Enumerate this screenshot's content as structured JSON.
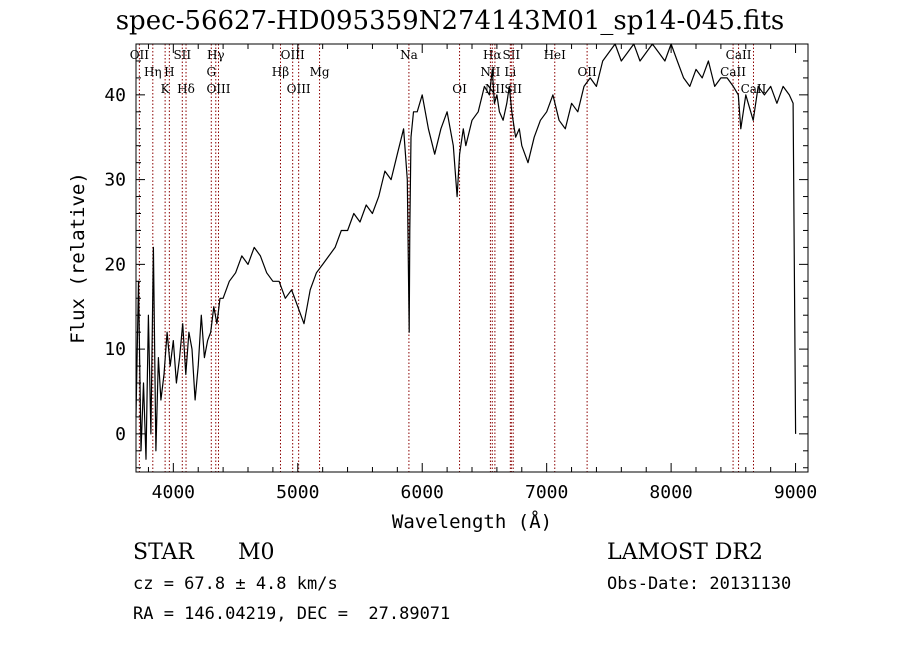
{
  "header": {
    "title": "spec-56627-HD095359N274143M01_sp14-045.fits"
  },
  "footer": {
    "class": "STAR",
    "subclass": "M0",
    "survey": "LAMOST DR2",
    "cz": "cz = 67.8 ± 4.8 km/s",
    "obs_date": "Obs-Date: 20131130",
    "coords": "RA = 146.04219, DEC =  27.89071"
  },
  "colors": {
    "line_marker": "#8b0000",
    "spectrum": "#000000"
  },
  "chart_data": {
    "type": "line",
    "title": "spec-56627-HD095359N274143M01_sp14-045.fits",
    "xlabel": "Wavelength (Å)",
    "ylabel": "Flux (relative)",
    "xlim": [
      3700,
      9100
    ],
    "ylim": [
      -4.5,
      46
    ],
    "xticks": [
      4000,
      5000,
      6000,
      7000,
      8000,
      9000
    ],
    "yticks": [
      0,
      10,
      20,
      30,
      40
    ],
    "grid": false,
    "series": [
      {
        "x": [
          3700,
          3720,
          3740,
          3760,
          3780,
          3800,
          3820,
          3840,
          3860,
          3880,
          3900,
          3925,
          3950,
          3975,
          4000,
          4025,
          4050,
          4075,
          4100,
          4125,
          4150,
          4175,
          4200,
          4225,
          4250,
          4275,
          4300,
          4325,
          4350,
          4375,
          4400,
          4450,
          4500,
          4550,
          4600,
          4650,
          4700,
          4750,
          4800,
          4850,
          4900,
          4950,
          5000,
          5050,
          5100,
          5150,
          5200,
          5250,
          5300,
          5350,
          5400,
          5450,
          5500,
          5550,
          5600,
          5650,
          5700,
          5750,
          5800,
          5850,
          5880,
          5895,
          5900,
          5910,
          5930,
          5960,
          6000,
          6050,
          6100,
          6150,
          6200,
          6250,
          6280,
          6300,
          6330,
          6350,
          6400,
          6450,
          6500,
          6540,
          6563,
          6580,
          6600,
          6620,
          6650,
          6680,
          6700,
          6720,
          6750,
          6780,
          6800,
          6850,
          6900,
          6950,
          7000,
          7050,
          7100,
          7150,
          7200,
          7250,
          7300,
          7350,
          7400,
          7450,
          7500,
          7550,
          7600,
          7650,
          7700,
          7750,
          7800,
          7850,
          7900,
          7950,
          8000,
          8050,
          8100,
          8150,
          8200,
          8250,
          8300,
          8350,
          8400,
          8450,
          8500,
          8540,
          8560,
          8600,
          8660,
          8700,
          8750,
          8800,
          8850,
          8900,
          8950,
          8980,
          9000
        ],
        "y": [
          2,
          18,
          -2,
          6,
          -3,
          14,
          0,
          22,
          -2,
          9,
          4,
          7,
          12,
          8,
          11,
          6,
          9,
          13,
          7,
          12,
          10,
          4,
          8,
          14,
          9,
          11,
          12,
          15,
          13,
          16,
          16,
          18,
          19,
          21,
          20,
          22,
          21,
          19,
          18,
          18,
          16,
          17,
          15,
          13,
          17,
          19,
          20,
          21,
          22,
          24,
          24,
          26,
          25,
          27,
          26,
          28,
          31,
          30,
          33,
          36,
          30,
          12,
          24,
          35,
          38,
          38,
          40,
          36,
          33,
          36,
          38,
          34,
          28,
          33,
          36,
          34,
          37,
          38,
          41,
          40,
          43,
          39,
          40,
          38,
          37,
          39,
          41,
          38,
          35,
          36,
          34,
          32,
          35,
          37,
          38,
          40,
          37,
          36,
          39,
          38,
          41,
          42,
          41,
          44,
          45,
          46,
          44,
          45,
          46,
          44,
          45,
          46,
          45,
          44,
          46,
          44,
          42,
          41,
          43,
          42,
          44,
          41,
          42,
          42,
          41,
          40,
          36,
          40,
          37,
          41,
          40,
          41,
          39,
          41,
          40,
          39,
          0
        ]
      }
    ],
    "lines": [
      {
        "label": "OII",
        "wave": 3727,
        "row": 0
      },
      {
        "label": "Hη",
        "wave": 3835,
        "row": 1
      },
      {
        "label": "H",
        "wave": 3968,
        "row": 1
      },
      {
        "label": "K",
        "wave": 3934,
        "row": 2
      },
      {
        "label": "SII",
        "wave": 4072,
        "row": 0
      },
      {
        "label": "Hδ",
        "wave": 4102,
        "row": 2
      },
      {
        "label": "Hγ",
        "wave": 4341,
        "row": 0
      },
      {
        "label": "G",
        "wave": 4305,
        "row": 1
      },
      {
        "label": "OIII",
        "wave": 4363,
        "row": 2
      },
      {
        "label": "OIII",
        "wave": 4959,
        "row": 0
      },
      {
        "label": "Hβ",
        "wave": 4861,
        "row": 1
      },
      {
        "label": "OIII",
        "wave": 5007,
        "row": 2
      },
      {
        "label": "Mg",
        "wave": 5175,
        "row": 1
      },
      {
        "label": "Na",
        "wave": 5893,
        "row": 0
      },
      {
        "label": "OI",
        "wave": 6300,
        "row": 2
      },
      {
        "label": "Hα",
        "wave": 6563,
        "row": 0
      },
      {
        "label": "SII",
        "wave": 6716,
        "row": 0
      },
      {
        "label": "NII",
        "wave": 6548,
        "row": 1
      },
      {
        "label": "Li",
        "wave": 6708,
        "row": 1
      },
      {
        "label": "NII",
        "wave": 6584,
        "row": 2
      },
      {
        "label": "SII",
        "wave": 6731,
        "row": 2
      },
      {
        "label": "OII",
        "wave": 7325,
        "row": 1
      },
      {
        "label": "HeI",
        "wave": 7065,
        "row": 0
      },
      {
        "label": "CaII",
        "wave": 8542,
        "row": 0
      },
      {
        "label": "CaII",
        "wave": 8498,
        "row": 1
      },
      {
        "label": "CaII",
        "wave": 8662,
        "row": 2
      }
    ]
  }
}
